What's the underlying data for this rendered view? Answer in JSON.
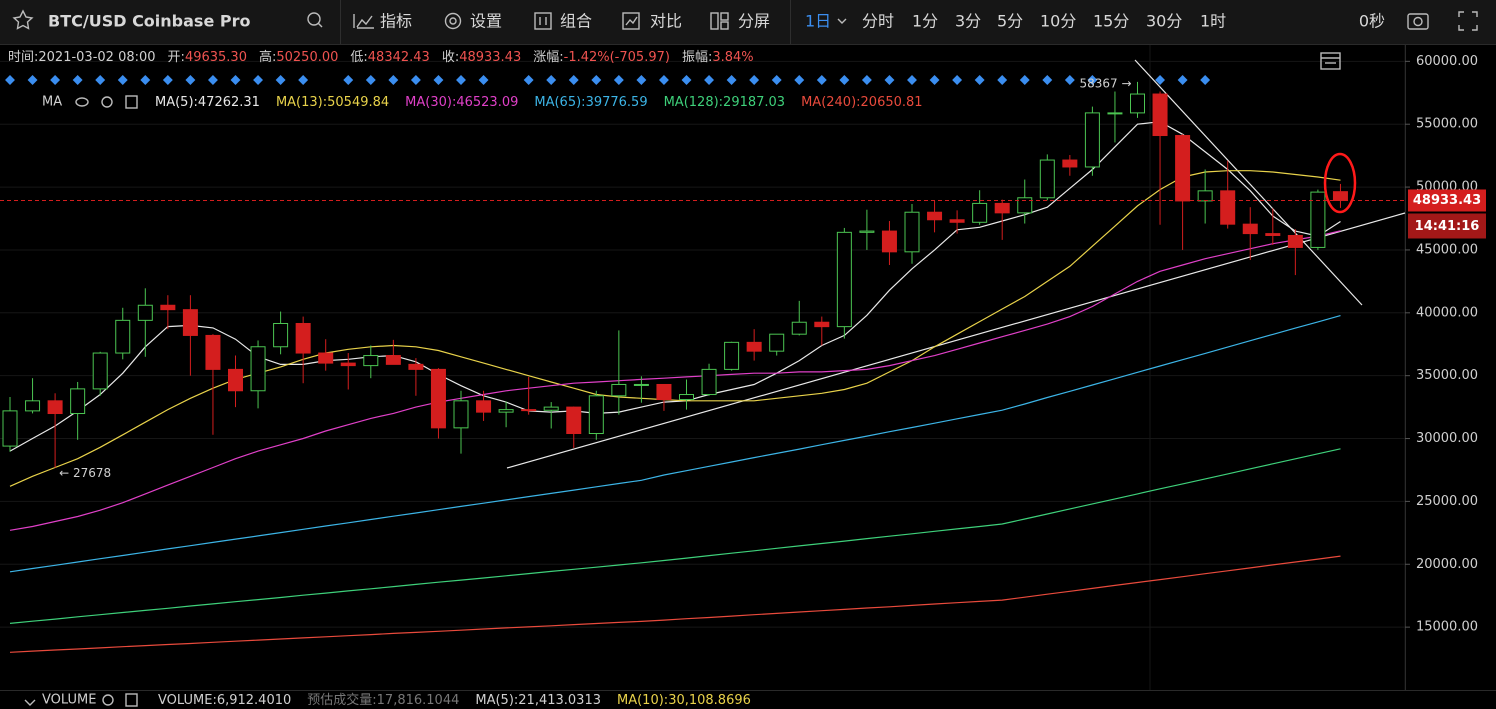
{
  "toolbar": {
    "title": "BTC/USD Coinbase Pro",
    "tools": [
      "指标",
      "设置",
      "组合",
      "对比",
      "分屏"
    ],
    "intervals": [
      "1日",
      "分时",
      "1分",
      "3分",
      "5分",
      "10分",
      "15分",
      "30分",
      "1时"
    ],
    "timer": "0秒"
  },
  "info_bar": [
    {
      "label": "时间:",
      "value": "2021-03-02 08:00"
    },
    {
      "label": "开:",
      "value": "49635.30"
    },
    {
      "label": "高:",
      "value": "50250.00"
    },
    {
      "label": "低:",
      "value": "48342.43"
    },
    {
      "label": "收:",
      "value": "48933.43"
    },
    {
      "label": "涨幅:",
      "value": "-1.42%(-705.97)"
    },
    {
      "label": "振幅:",
      "value": "3.84%"
    }
  ],
  "ma_legend": {
    "title": "MA",
    "items": [
      {
        "label": "MA(5):",
        "value": 47262.31
      },
      {
        "label": "MA(13):",
        "value": 50549.84
      },
      {
        "label": "MA(30):",
        "value": 46523.09
      },
      {
        "label": "MA(65):",
        "value": 39776.59
      },
      {
        "label": "MA(128):",
        "value": 29187.03
      },
      {
        "label": "MA(240):",
        "value": 20650.81
      }
    ]
  },
  "volume_bar": {
    "title": "VOLUME",
    "items": [
      {
        "label": "VOLUME:",
        "value": "6,912.4010",
        "color": "#d0d0d0"
      },
      {
        "label": "预估成交量:",
        "value": "17,816.1044",
        "color": "#777777"
      },
      {
        "label": "MA(5):",
        "value": "21,413.0313",
        "color": "#d0d0d0"
      },
      {
        "label": "MA(10):",
        "value": "30,108.8696",
        "color": "#e8d24a"
      }
    ]
  },
  "chart_data": {
    "type": "candlestick",
    "categories": [
      null,
      null,
      null,
      null,
      null,
      null,
      null,
      null,
      null,
      null,
      null,
      null,
      null,
      null,
      null,
      null,
      null,
      null,
      null,
      null,
      null,
      null,
      null,
      null,
      null,
      null,
      null,
      null,
      null,
      null,
      null,
      null,
      null,
      null,
      null,
      null,
      null,
      null,
      null,
      null,
      null,
      null,
      null,
      null,
      null,
      null,
      null,
      null,
      null,
      null,
      null,
      null,
      null,
      null,
      null,
      null,
      null,
      null,
      null,
      null
    ],
    "open": [
      29400,
      32200,
      33000,
      31990,
      33950,
      36800,
      39400,
      40600,
      40250,
      38200,
      35500,
      33800,
      37300,
      39150,
      36800,
      36000,
      35800,
      36600,
      35900,
      35500,
      30850,
      33000,
      32100,
      32300,
      32250,
      32500,
      30400,
      33400,
      34300,
      34300,
      33100,
      33500,
      35500,
      37650,
      36950,
      38300,
      39250,
      38900,
      46400,
      46500,
      44850,
      48000,
      47400,
      47200,
      48700,
      47950,
      49150,
      52150,
      51600,
      55900,
      55900,
      57400,
      54100,
      48900,
      49700,
      47050,
      46300,
      46150,
      45200,
      49635.3
    ],
    "high": [
      33300,
      34800,
      33600,
      34500,
      36900,
      40400,
      41950,
      41400,
      41400,
      38300,
      36600,
      37800,
      40100,
      39700,
      37900,
      36800,
      37400,
      37850,
      36400,
      35600,
      33800,
      33800,
      32950,
      34900,
      32900,
      32550,
      33800,
      38600,
      34950,
      34300,
      34700,
      35950,
      37700,
      38700,
      38300,
      40950,
      39700,
      46750,
      48200,
      47300,
      48650,
      48900,
      48150,
      49750,
      49000,
      50600,
      52600,
      52550,
      56400,
      57600,
      58367,
      57600,
      54200,
      51400,
      52100,
      48400,
      48300,
      46650,
      49800,
      50250
    ],
    "low": [
      28950,
      32000,
      27678,
      29900,
      33400,
      36300,
      36500,
      38700,
      35000,
      30300,
      32500,
      32400,
      36700,
      34400,
      35400,
      33900,
      34800,
      35900,
      33400,
      30000,
      28800,
      31400,
      30900,
      31900,
      30800,
      29250,
      29900,
      31900,
      32850,
      32200,
      32300,
      33400,
      35400,
      36200,
      36600,
      38200,
      37400,
      37950,
      45000,
      43800,
      43900,
      46400,
      46300,
      47000,
      45800,
      47100,
      48950,
      50900,
      50900,
      53550,
      55500,
      47000,
      45000,
      47100,
      46700,
      44200,
      45400,
      43000,
      45000,
      48342.43
    ],
    "close": [
      32200,
      33000,
      31990,
      33950,
      36800,
      39400,
      40600,
      40250,
      38200,
      35500,
      33800,
      37300,
      39150,
      36800,
      36000,
      35800,
      36600,
      35900,
      35500,
      30850,
      33000,
      32100,
      32300,
      32250,
      32500,
      30400,
      33400,
      34300,
      34300,
      33100,
      33500,
      35500,
      37650,
      36950,
      38300,
      39250,
      38900,
      46400,
      46500,
      44850,
      48000,
      47400,
      47200,
      48700,
      47950,
      49150,
      52150,
      51600,
      55900,
      55900,
      57400,
      54100,
      48900,
      49700,
      47050,
      46300,
      46150,
      45200,
      49600,
      48933.43
    ],
    "up_color": "#4cc552",
    "down_color": "#d41e1e",
    "series": [
      {
        "color": "#e8e8e8",
        "values": [
          29000,
          30000,
          31000,
          32200,
          33500,
          35200,
          37300,
          38900,
          39000,
          38800,
          37900,
          36500,
          35900,
          35900,
          36200,
          36300,
          36500,
          36600,
          36100,
          35100,
          34200,
          33400,
          32900,
          32200,
          32100,
          32200,
          32000,
          32100,
          32500,
          32900,
          33000,
          33500,
          33900,
          34300,
          35200,
          36200,
          37400,
          38200,
          39800,
          41800,
          43500,
          45000,
          46600,
          46800,
          47300,
          47800,
          48400,
          49900,
          51400,
          53200,
          55000,
          55200,
          54200,
          52800,
          51400,
          49700,
          47700,
          46500,
          46100,
          47262.31
        ]
      },
      {
        "color": "#e8d24a",
        "values": [
          26200,
          27000,
          27700,
          28400,
          29300,
          30300,
          31300,
          32300,
          33200,
          34000,
          34700,
          35200,
          35700,
          36300,
          36800,
          37100,
          37300,
          37400,
          37300,
          37000,
          36500,
          36000,
          35500,
          35000,
          34500,
          34000,
          33500,
          33300,
          33200,
          33100,
          33000,
          33000,
          33000,
          33000,
          33200,
          33400,
          33600,
          33900,
          34400,
          35300,
          36200,
          37300,
          38300,
          39300,
          40300,
          41300,
          42500,
          43700,
          45300,
          46900,
          48500,
          49800,
          50800,
          51200,
          51300,
          51300,
          51200,
          51000,
          50800,
          50549.84
        ]
      },
      {
        "color": "#e040c8",
        "values": [
          22700,
          23000,
          23400,
          23800,
          24300,
          24900,
          25600,
          26300,
          27000,
          27700,
          28400,
          29000,
          29500,
          30000,
          30600,
          31100,
          31600,
          32000,
          32500,
          32900,
          33200,
          33500,
          33800,
          34000,
          34200,
          34400,
          34500,
          34600,
          34700,
          34800,
          34900,
          35000,
          35100,
          35200,
          35200,
          35300,
          35300,
          35400,
          35500,
          35800,
          36200,
          36600,
          37100,
          37600,
          38100,
          38600,
          39100,
          39700,
          40500,
          41500,
          42500,
          43300,
          43800,
          44300,
          44700,
          45100,
          45500,
          45800,
          46100,
          46523.09
        ]
      },
      {
        "color": "#3cb4e6",
        "values": [
          19400,
          19660,
          19920,
          20180,
          20440,
          20700,
          20960,
          21220,
          21480,
          21740,
          22000,
          22260,
          22520,
          22780,
          23040,
          23300,
          23560,
          23820,
          24080,
          24340,
          24600,
          24860,
          25120,
          25380,
          25640,
          25900,
          26160,
          26420,
          26680,
          27100,
          27440,
          27790,
          28130,
          28480,
          28820,
          29160,
          29510,
          29850,
          30190,
          30540,
          30880,
          31220,
          31570,
          31910,
          32250,
          32750,
          33260,
          33760,
          34260,
          34760,
          35270,
          35770,
          36270,
          36770,
          37270,
          37780,
          38280,
          38780,
          39280,
          39776.59
        ]
      },
      {
        "color": "#3ed07a",
        "values": [
          15300,
          15470,
          15640,
          15820,
          15990,
          16160,
          16330,
          16500,
          16680,
          16850,
          17020,
          17190,
          17360,
          17540,
          17710,
          17880,
          18050,
          18220,
          18400,
          18570,
          18740,
          18910,
          19080,
          19260,
          19430,
          19600,
          19770,
          19940,
          20120,
          20300,
          20490,
          20690,
          20880,
          21070,
          21270,
          21460,
          21650,
          21840,
          22040,
          22230,
          22420,
          22620,
          22810,
          23000,
          23200,
          23600,
          24000,
          24400,
          24800,
          25200,
          25600,
          26000,
          26390,
          26790,
          27190,
          27590,
          27990,
          28390,
          28790,
          29187.03
        ]
      },
      {
        "color": "#e84a3c",
        "values": [
          13000,
          13090,
          13180,
          13260,
          13350,
          13440,
          13530,
          13620,
          13700,
          13790,
          13880,
          13970,
          14060,
          14140,
          14230,
          14320,
          14410,
          14500,
          14580,
          14670,
          14760,
          14850,
          14940,
          15020,
          15110,
          15200,
          15290,
          15380,
          15460,
          15560,
          15670,
          15770,
          15880,
          15990,
          16090,
          16200,
          16310,
          16410,
          16520,
          16620,
          16730,
          16840,
          16940,
          17050,
          17150,
          17380,
          17620,
          17850,
          18080,
          18320,
          18550,
          18780,
          19010,
          19250,
          19480,
          19710,
          19950,
          20180,
          20410,
          20650.81
        ]
      }
    ],
    "ylim": [
      10000,
      61300
    ],
    "yticks": [
      {
        "value": 15000,
        "label": "15000.00"
      },
      {
        "value": 20000,
        "label": "20000.00"
      },
      {
        "value": 25000,
        "label": "25000.00"
      },
      {
        "value": 30000,
        "label": "30000.00"
      },
      {
        "value": 35000,
        "label": "35000.00"
      },
      {
        "value": 40000,
        "label": "40000.00"
      },
      {
        "value": 45000,
        "label": "45000.00"
      },
      {
        "value": 50000,
        "label": "50000.00"
      },
      {
        "value": 55000,
        "label": "55000.00"
      },
      {
        "value": 60000,
        "label": "60000.00"
      }
    ],
    "grid": true,
    "annotations": [
      {
        "value": 58367,
        "label": "58367 →"
      },
      {
        "value": 27678,
        "label": "← 27678"
      }
    ],
    "last_price": {
      "value": 48933.43,
      "label": "48933.43"
    },
    "countdown": "14:41:16"
  }
}
